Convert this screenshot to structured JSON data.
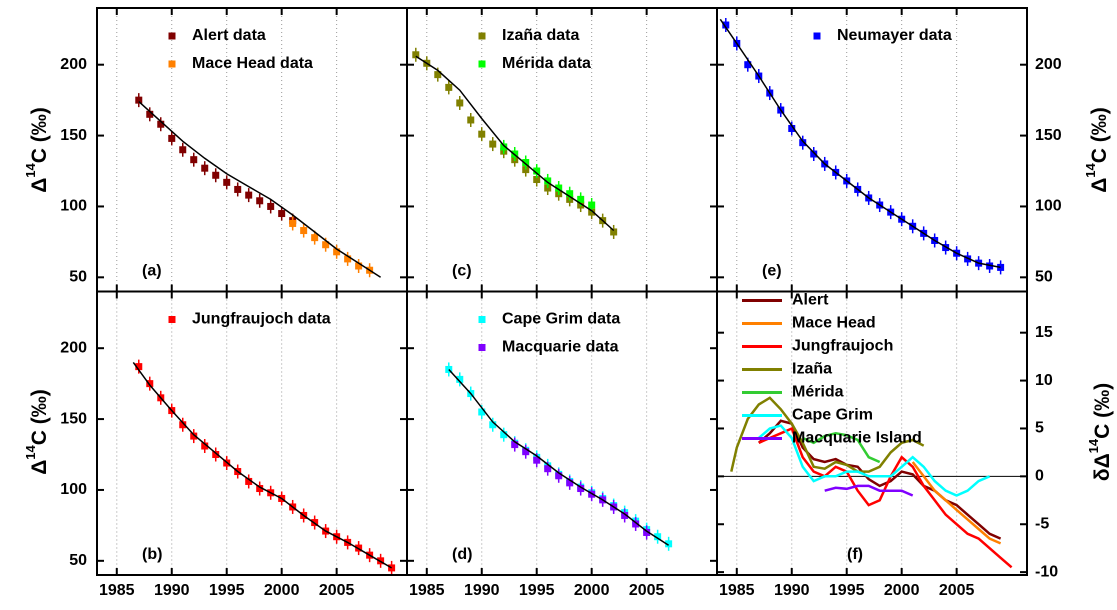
{
  "y_axis_label": {
    "pre": "Δ",
    "sup": "14",
    "post": "C (‰)"
  },
  "y2_axis_label": {
    "pre": "δΔ",
    "sup": "14",
    "post": "C (‰)"
  },
  "chart_data": [
    {
      "type": "scatter",
      "panel_label": "(a)",
      "xlim": [
        1983.2,
        2011.4
      ],
      "ylim": [
        40,
        240
      ],
      "xticks": [
        1985,
        1990,
        1995,
        2000,
        2005
      ],
      "yticks": [
        50,
        100,
        150,
        200
      ],
      "grid": true,
      "ytick_labels": "left",
      "xtick_labels": false,
      "series": [
        {
          "name": "Alert data",
          "color": "#800000",
          "x": [
            1987,
            1988,
            1989,
            1990,
            1991,
            1992,
            1993,
            1994,
            1995,
            1996,
            1997,
            1998,
            1999,
            2000,
            2001
          ],
          "values": [
            175,
            165,
            158,
            148,
            140,
            133,
            127,
            122,
            117,
            112,
            108,
            104,
            100,
            95,
            90
          ]
        },
        {
          "name": "Mace Head data",
          "color": "#ff8000",
          "x": [
            2001,
            2002,
            2003,
            2004,
            2005,
            2006,
            2007,
            2008
          ],
          "values": [
            88,
            83,
            78,
            73,
            68,
            63,
            58,
            55
          ]
        }
      ],
      "fit": {
        "color": "#000000",
        "x": [
          1987,
          1989,
          1991,
          1993,
          1995,
          1997,
          1999,
          2001,
          2003,
          2005,
          2007,
          2009
        ],
        "values": [
          174,
          160,
          146,
          134,
          123,
          114,
          105,
          94,
          82,
          70,
          60,
          50
        ]
      }
    },
    {
      "type": "scatter",
      "panel_label": "(b)",
      "xlim": [
        1983.2,
        2011.4
      ],
      "ylim": [
        40,
        240
      ],
      "xticks": [
        1985,
        1990,
        1995,
        2000,
        2005
      ],
      "yticks": [
        50,
        100,
        150,
        200
      ],
      "grid": true,
      "ytick_labels": "left",
      "xtick_labels": true,
      "series": [
        {
          "name": "Jungfraujoch data",
          "color": "#ff0000",
          "x": [
            1987,
            1988,
            1989,
            1990,
            1991,
            1992,
            1993,
            1994,
            1995,
            1996,
            1997,
            1998,
            1999,
            2000,
            2001,
            2002,
            2003,
            2004,
            2005,
            2006,
            2007,
            2008,
            2009,
            2010
          ],
          "values": [
            187,
            175,
            165,
            156,
            146,
            138,
            131,
            125,
            119,
            113,
            106,
            101,
            98,
            94,
            88,
            82,
            77,
            71,
            67,
            63,
            59,
            54,
            50,
            45
          ]
        }
      ],
      "fit": {
        "color": "#000000",
        "x": [
          1986.5,
          1988,
          1990,
          1992,
          1994,
          1996,
          1998,
          2000,
          2002,
          2004,
          2006,
          2008,
          2010
        ],
        "values": [
          190,
          174,
          156,
          139,
          126,
          113,
          102,
          94,
          82,
          71,
          63,
          54,
          45
        ]
      }
    },
    {
      "type": "scatter",
      "panel_label": "(c)",
      "xlim": [
        1983.2,
        2011.4
      ],
      "ylim": [
        40,
        240
      ],
      "xticks": [
        1985,
        1990,
        1995,
        2000,
        2005
      ],
      "yticks": [
        50,
        100,
        150,
        200
      ],
      "grid": true,
      "ytick_labels": "none",
      "xtick_labels": false,
      "series": [
        {
          "name": "Izaña data",
          "color": "#808000",
          "x": [
            1984,
            1985,
            1986,
            1987,
            1988,
            1989,
            1990,
            1991,
            1992,
            1993,
            1994,
            1995,
            1996,
            1997,
            1998,
            1999,
            2000,
            2001,
            2002
          ],
          "values": [
            207,
            201,
            193,
            184,
            173,
            161,
            151,
            144,
            139,
            133,
            126,
            119,
            113,
            109,
            105,
            101,
            96,
            90,
            82
          ]
        },
        {
          "name": "Mérida data",
          "color": "#00ff00",
          "x": [
            1992,
            1993,
            1994,
            1995,
            1996,
            1997,
            1998,
            1999,
            2000
          ],
          "values": [
            142,
            137,
            131,
            125,
            118,
            113,
            109,
            105,
            101
          ]
        }
      ],
      "fit": {
        "color": "#000000",
        "x": [
          1984,
          1986,
          1988,
          1990,
          1992,
          1994,
          1996,
          1998,
          2000,
          2002
        ],
        "values": [
          206,
          196,
          182,
          162,
          143,
          130,
          117,
          107,
          97,
          83
        ]
      }
    },
    {
      "type": "scatter",
      "panel_label": "(d)",
      "xlim": [
        1983.2,
        2011.4
      ],
      "ylim": [
        40,
        240
      ],
      "xticks": [
        1985,
        1990,
        1995,
        2000,
        2005
      ],
      "yticks": [
        50,
        100,
        150,
        200
      ],
      "grid": true,
      "ytick_labels": "none",
      "xtick_labels": true,
      "series": [
        {
          "name": "Cape Grim data",
          "color": "#00ffff",
          "x": [
            1987,
            1988,
            1989,
            1990,
            1991,
            1992,
            1993,
            1994,
            1995,
            1996,
            1997,
            1998,
            1999,
            2000,
            2001,
            2002,
            2003,
            2004,
            2005,
            2006,
            2007
          ],
          "values": [
            185,
            178,
            168,
            155,
            146,
            139,
            133,
            128,
            123,
            117,
            111,
            106,
            102,
            98,
            94,
            89,
            84,
            78,
            72,
            67,
            62
          ]
        },
        {
          "name": "Macquarie data",
          "color": "#8000ff",
          "x": [
            1993,
            1994,
            1995,
            1996,
            1997,
            1998,
            1999,
            2000,
            2001,
            2002,
            2003,
            2004,
            2005
          ],
          "values": [
            132,
            127,
            121,
            115,
            110,
            105,
            101,
            97,
            93,
            88,
            82,
            76,
            70
          ]
        }
      ],
      "fit": {
        "color": "#000000",
        "x": [
          1987,
          1989,
          1991,
          1993,
          1995,
          1997,
          1999,
          2001,
          2003,
          2005,
          2007
        ],
        "values": [
          185,
          168,
          148,
          134,
          124,
          112,
          102,
          93,
          83,
          71,
          61
        ]
      }
    },
    {
      "type": "scatter",
      "panel_label": "(e)",
      "xlim": [
        1983.2,
        2011.4
      ],
      "ylim": [
        40,
        240
      ],
      "xticks": [
        1985,
        1990,
        1995,
        2000,
        2005
      ],
      "yticks": [
        50,
        100,
        150,
        200
      ],
      "grid": true,
      "ytick_labels": "right",
      "xtick_labels": false,
      "series": [
        {
          "name": "Neumayer data",
          "color": "#0000ff",
          "x": [
            1984,
            1985,
            1986,
            1987,
            1988,
            1989,
            1990,
            1991,
            1992,
            1993,
            1994,
            1995,
            1996,
            1997,
            1998,
            1999,
            2000,
            2001,
            2002,
            2003,
            2004,
            2005,
            2006,
            2007,
            2008,
            2009
          ],
          "values": [
            228,
            215,
            200,
            192,
            180,
            168,
            155,
            145,
            137,
            130,
            124,
            118,
            112,
            106,
            101,
            96,
            91,
            86,
            81,
            76,
            71,
            67,
            63,
            60,
            58,
            57
          ]
        }
      ],
      "fit": {
        "color": "#000000",
        "x": [
          1983.5,
          1985,
          1987,
          1989,
          1991,
          1993,
          1995,
          1997,
          1999,
          2001,
          2003,
          2005,
          2007,
          2009
        ],
        "values": [
          232,
          215,
          192,
          168,
          146,
          130,
          118,
          106,
          96,
          86,
          76,
          67,
          60,
          57
        ]
      }
    },
    {
      "type": "line",
      "panel_label": "(f)",
      "xlim": [
        1983.2,
        2011.4
      ],
      "ylim": [
        -10.3,
        19.3
      ],
      "xticks": [
        1985,
        1990,
        1995,
        2000,
        2005
      ],
      "yticks": [
        -10,
        -5,
        0,
        5,
        10,
        15
      ],
      "grid": true,
      "ytick_labels": "right",
      "xtick_labels": true,
      "zero_line": true,
      "legend": "upper left",
      "series": [
        {
          "name": "Alert",
          "color": "#800000",
          "x": [
            1987,
            1988,
            1989,
            1990,
            1991,
            1992,
            1993,
            1994,
            1995,
            1996,
            1997,
            1998,
            1999,
            2000,
            2001,
            2002,
            2003,
            2004,
            2005,
            2006,
            2007,
            2008,
            2009
          ],
          "values": [
            3.5,
            4.5,
            5.8,
            5.5,
            3,
            1.8,
            1.5,
            1.8,
            1.2,
            1,
            -0.3,
            -1,
            -0.5,
            0.5,
            0.2,
            -1,
            -1.5,
            -2.5,
            -3,
            -4,
            -5,
            -6,
            -6.5
          ]
        },
        {
          "name": "Mace Head",
          "color": "#ff8000",
          "x": [
            2001,
            2002,
            2003,
            2004,
            2005,
            2006,
            2007,
            2008,
            2009
          ],
          "values": [
            1.5,
            0,
            -1.5,
            -2.5,
            -3.5,
            -4.5,
            -5.5,
            -6.5,
            -7
          ]
        },
        {
          "name": "Jungfraujoch",
          "color": "#ff0000",
          "x": [
            1987,
            1988,
            1989,
            1990,
            1991,
            1992,
            1993,
            1994,
            1995,
            1996,
            1997,
            1998,
            1999,
            2000,
            2001,
            2002,
            2003,
            2004,
            2005,
            2006,
            2007,
            2008,
            2009,
            2010
          ],
          "values": [
            3.5,
            4,
            4.5,
            5,
            2,
            0.5,
            0,
            1,
            0.5,
            -1.5,
            -3,
            -2.5,
            0,
            2,
            1,
            -1,
            -2.5,
            -4,
            -5,
            -6,
            -6.5,
            -7.5,
            -8.5,
            -9.5
          ]
        },
        {
          "name": "Izaña",
          "color": "#808000",
          "x": [
            1984.5,
            1985,
            1986,
            1987,
            1988,
            1989,
            1990,
            1991,
            1992,
            1993,
            1994,
            1995,
            1996,
            1997,
            1998,
            1999,
            2000,
            2001,
            2002
          ],
          "values": [
            0.5,
            3,
            6,
            7.5,
            8.2,
            7,
            5.5,
            3.5,
            1,
            0.8,
            1.5,
            1.2,
            0.5,
            0.5,
            1,
            2.5,
            3.5,
            3.8,
            3.2
          ]
        },
        {
          "name": "Mérida",
          "color": "#33cc33",
          "x": [
            1991,
            1992,
            1993,
            1994,
            1995,
            1996,
            1997,
            1998
          ],
          "values": [
            4,
            3.5,
            4.2,
            4.5,
            4.3,
            3.8,
            2,
            1.5
          ]
        },
        {
          "name": "Cape Grim",
          "color": "#00ffff",
          "x": [
            1987,
            1988,
            1989,
            1990,
            1991,
            1992,
            1993,
            1994,
            1995,
            1996,
            1997,
            1998,
            1999,
            2000,
            2001,
            2002,
            2003,
            2004,
            2005,
            2006,
            2007,
            2008
          ],
          "values": [
            4,
            5,
            5.3,
            4,
            1,
            -0.5,
            0,
            0,
            0.5,
            0.5,
            0,
            0,
            0,
            1,
            2,
            1,
            -0.5,
            -1.5,
            -2,
            -1.5,
            -0.5,
            0
          ]
        },
        {
          "name": "Macquarie Island",
          "color": "#8000ff",
          "x": [
            1993,
            1994,
            1995,
            1996,
            1997,
            1998,
            1999,
            2000,
            2001
          ],
          "values": [
            -1.5,
            -1.2,
            -1.3,
            -1,
            -1,
            -1.5,
            -1.5,
            -1.5,
            -2
          ]
        }
      ]
    }
  ]
}
